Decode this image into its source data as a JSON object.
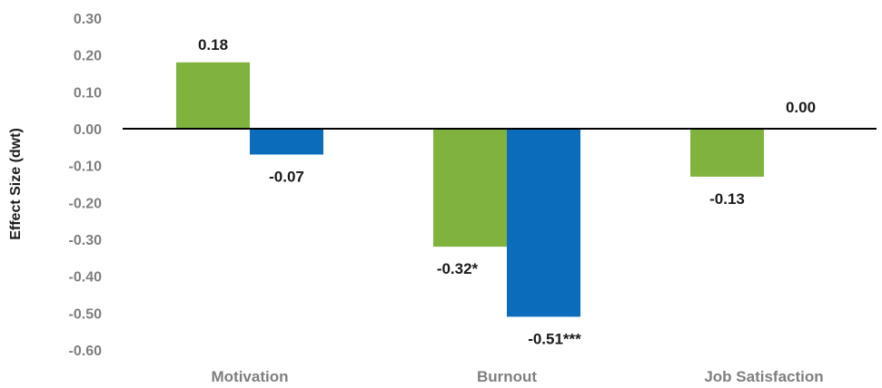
{
  "chart_data": {
    "type": "bar",
    "ylabel": "Effect Size (dwt)",
    "ylim": [
      -0.6,
      0.3
    ],
    "yticks": [
      "0.30",
      "0.20",
      "0.10",
      "0.00",
      "-0.10",
      "-0.20",
      "-0.30",
      "-0.40",
      "-0.50",
      "-0.60"
    ],
    "ytick_values": [
      0.3,
      0.2,
      0.1,
      0.0,
      -0.1,
      -0.2,
      -0.3,
      -0.4,
      -0.5,
      -0.6
    ],
    "categories": [
      "Motivation",
      "Burnout",
      "Job Satisfaction"
    ],
    "series": [
      {
        "color": "#7fb33d",
        "values": [
          0.18,
          -0.32,
          -0.13
        ],
        "labels": [
          "0.18",
          "-0.32*",
          "-0.13"
        ]
      },
      {
        "color": "#0a6cbb",
        "values": [
          -0.07,
          -0.51,
          0.0
        ],
        "labels": [
          "-0.07",
          "-0.51***",
          "0.00"
        ]
      }
    ],
    "grid": false,
    "legend": "none"
  }
}
